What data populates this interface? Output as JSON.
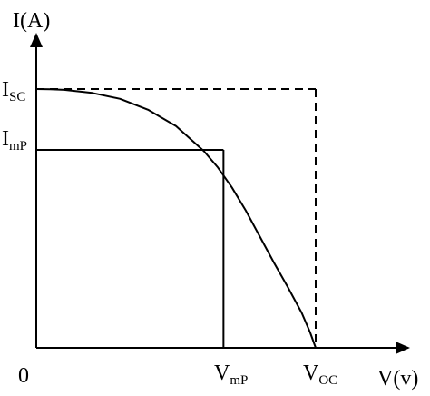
{
  "chart_data": {
    "type": "line",
    "title": "",
    "xlabel": "V(v)",
    "ylabel": "I(A)",
    "origin_label": "0",
    "xlim": [
      0,
      1.0
    ],
    "ylim": [
      0,
      1.0
    ],
    "series": [
      {
        "x": [
          0.0,
          0.05,
          0.1,
          0.2,
          0.3,
          0.4,
          0.5,
          0.6,
          0.65,
          0.7,
          0.75,
          0.8,
          0.85,
          0.9,
          0.95,
          0.98,
          1.0
        ],
        "y": [
          1.0,
          0.999,
          0.997,
          0.985,
          0.962,
          0.92,
          0.857,
          0.76,
          0.697,
          0.62,
          0.53,
          0.43,
          0.33,
          0.235,
          0.135,
          0.06,
          0.0
        ]
      }
    ],
    "points": {
      "isc": {
        "y": 1.0,
        "label_main": "I",
        "label_sub": "SC"
      },
      "imp": {
        "y": 0.765,
        "label_main": "I",
        "label_sub": "mP"
      },
      "vmp": {
        "x": 0.67,
        "label_main": "V",
        "label_sub": "mP"
      },
      "voc": {
        "x": 1.0,
        "label_main": "V",
        "label_sub": "OC"
      }
    },
    "rectangles": [
      {
        "style": "dashed",
        "x": [
          0,
          1.0
        ],
        "y": [
          0,
          1.0
        ]
      },
      {
        "style": "solid",
        "x": [
          0,
          0.67
        ],
        "y": [
          0,
          0.765
        ]
      }
    ],
    "grid": false,
    "colors": {
      "line": "#000000",
      "background": "#ffffff"
    }
  }
}
